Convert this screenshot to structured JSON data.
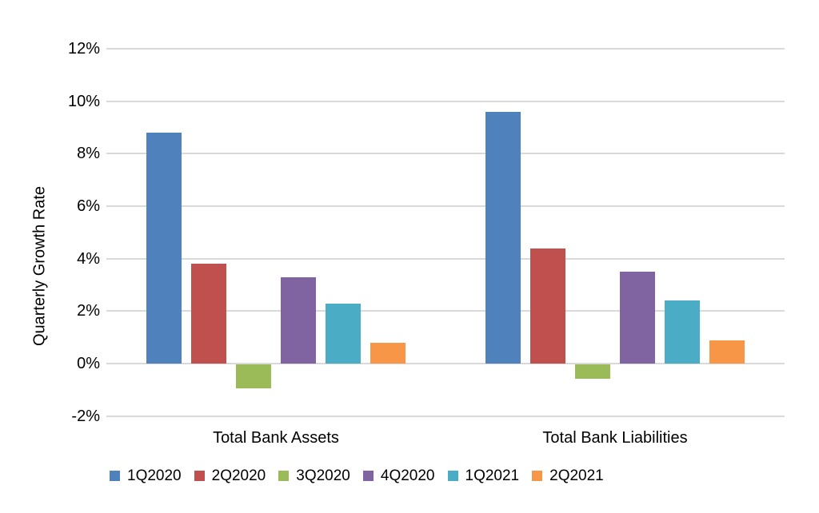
{
  "chart_data": {
    "type": "bar",
    "title": "",
    "ylabel": "Quarterly Growth Rate",
    "xlabel": "",
    "categories": [
      "Total Bank Assets",
      "Total Bank Liabilities"
    ],
    "series": [
      {
        "name": "1Q2020",
        "color": "#4F81BD",
        "values": [
          8.8,
          9.6
        ]
      },
      {
        "name": "2Q2020",
        "color": "#C0504D",
        "values": [
          3.8,
          4.4
        ]
      },
      {
        "name": "3Q2020",
        "color": "#9BBB59",
        "values": [
          -0.9,
          -0.55
        ]
      },
      {
        "name": "4Q2020",
        "color": "#8064A2",
        "values": [
          3.3,
          3.5
        ]
      },
      {
        "name": "1Q2021",
        "color": "#4BACC6",
        "values": [
          2.3,
          2.4
        ]
      },
      {
        "name": "2Q2021",
        "color": "#F79646",
        "values": [
          0.8,
          0.9
        ]
      }
    ],
    "y_axis": {
      "min": -2,
      "max": 12,
      "step": 2,
      "unit": "%",
      "tick_labels": [
        "12%",
        "10%",
        "8%",
        "6%",
        "4%",
        "2%",
        "0%",
        "-2%"
      ]
    },
    "grid": true,
    "gridline_color": "#D9D9D9",
    "text_color": "#000000",
    "background_color": "#FFFFFF",
    "legend_position": "bottom"
  }
}
